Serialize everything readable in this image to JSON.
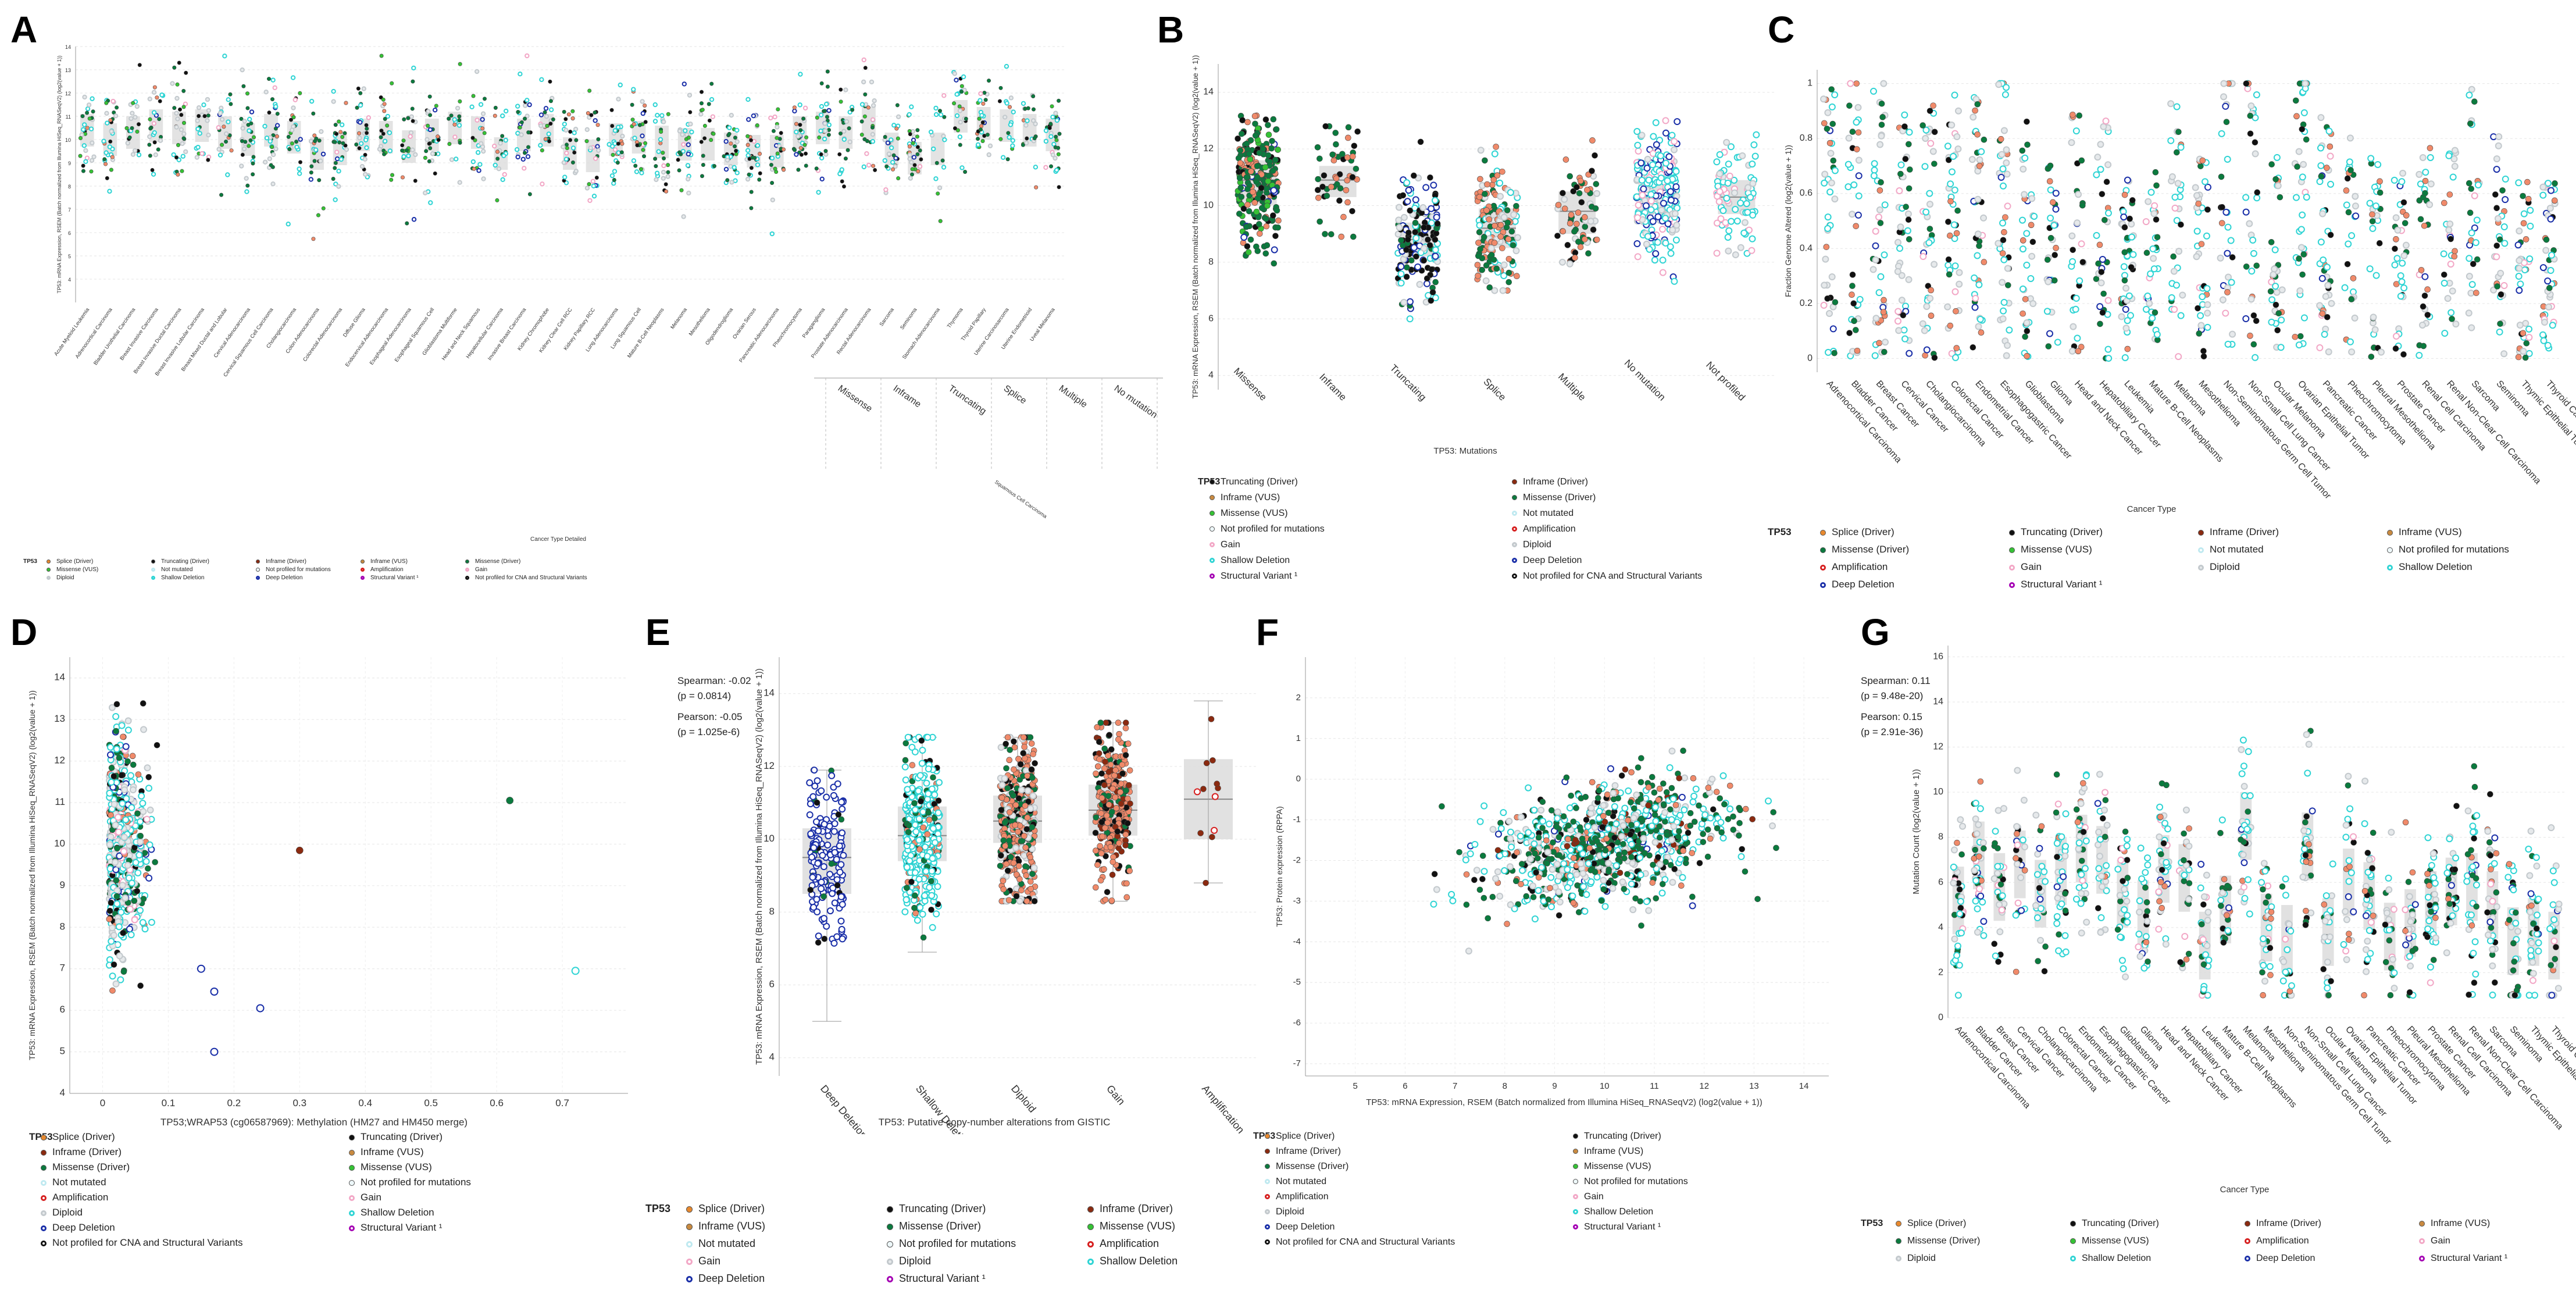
{
  "panels": {
    "A": "A",
    "B": "B",
    "C": "C",
    "D": "D",
    "E": "E",
    "F": "F",
    "G": "G"
  },
  "colors": {
    "splice": "#e8892e",
    "truncating": "#111111",
    "inframe": "#8b2a10",
    "missense_driver": "#0b7a3e",
    "missense_vus": "#35c235",
    "not_mutated": "#bfe9f0",
    "amplification": "#d61f1f",
    "gain": "#f2a7c6",
    "diploid": "#c3c9cd",
    "shallow": "#2fd4d4",
    "deep": "#1a2fa8",
    "structural": "#a400b3",
    "not_profiled_cna": "#111111",
    "inframe_vus": "#c98a40",
    "salmon": "#f08a6a",
    "box": "#dcdcdc"
  },
  "chart_data": [
    {
      "id": "A",
      "type": "scatter",
      "title": "",
      "xlabel": "Cancer Type Detailed",
      "ylabel": "TP53: mRNA Expression, RSEM (Batch normalized from Illumina HiSeq_RNASeqV2) (log2(value + 1))",
      "ylim": [
        3,
        14
      ],
      "yticks": [
        4,
        5,
        6,
        7,
        8,
        9,
        10,
        11,
        12,
        13,
        14
      ],
      "categories": [
        "Acute Myeloid Leukemia",
        "Adrenocortical Carcinoma",
        "Bladder Urothelial Carcinoma",
        "Breast Invasive Carcinoma",
        "Breast Invasive Ductal Carcinoma",
        "Breast Invasive Lobular Carcinoma",
        "Breast Mixed Ductal and Lobular",
        "Cervical Adenocarcinoma",
        "Cervical Squamous Cell Carcinoma",
        "Cholangiocarcinoma",
        "Colon Adenocarcinoma",
        "Colorectal Adenocarcinoma",
        "Diffuse Glioma",
        "Endocervical Adenocarcinoma",
        "Esophageal Adenocarcinoma",
        "Esophageal Squamous Cell",
        "Glioblastoma Multiforme",
        "Head and Neck Squamous",
        "Hepatocellular Carcinoma",
        "Invasive Breast Carcinoma",
        "Kidney Chromophobe",
        "Kidney Clear Cell RCC",
        "Kidney Papillary RCC",
        "Lung Adenocarcinoma",
        "Lung Squamous Cell",
        "Mature B-Cell Neoplasms",
        "Melanoma",
        "Mesothelioma",
        "Oligodendroglioma",
        "Ovarian Serous",
        "Pancreatic Adenocarcinoma",
        "Pheochromocytoma",
        "Paraganglioma",
        "Prostate Adenocarcinoma",
        "Rectal Adenocarcinoma",
        "Sarcoma",
        "Seminoma",
        "Stomach Adenocarcinoma",
        "Thymoma",
        "Thyroid Papillary",
        "Uterine Carcinosarcoma",
        "Uterine Endometrioid",
        "Uveal Melanoma"
      ],
      "medians": [
        10.4,
        10.0,
        10.3,
        10.6,
        10.5,
        10.6,
        10.3,
        10.0,
        10.4,
        10.1,
        9.4,
        9.6,
        10.2,
        10.1,
        9.7,
        10.2,
        10.5,
        10.3,
        9.4,
        10.2,
        10.4,
        9.4,
        9.3,
        10.0,
        10.1,
        9.9,
        9.8,
        9.8,
        9.6,
        9.5,
        9.5,
        10.3,
        10.5,
        10.3,
        10.7,
        9.6,
        9.2,
        9.6,
        11.0,
        10.7,
        10.6,
        10.4,
        10.2
      ],
      "x_panel_labels": [
        "Missense",
        "Inframe",
        "Truncating",
        "Splice",
        "Multiple",
        "No mutation",
        "Not profiled"
      ],
      "x_panel_extra": "Squamous Cell Carcinoma",
      "legend_title": "TP53",
      "legend": [
        "Splice (Driver)",
        "Truncating (Driver)",
        "Inframe (Driver)",
        "Inframe (VUS)",
        "Missense (Driver)",
        "Missense (VUS)",
        "Not mutated",
        "Not profiled for mutations",
        "Amplification",
        "Gain",
        "Diploid",
        "Shallow Deletion",
        "Deep Deletion",
        "Structural Variant ¹",
        "Not profiled for CNA and Structural Variants"
      ]
    },
    {
      "id": "B",
      "type": "scatter",
      "title": "",
      "xlabel": "TP53: Mutations",
      "ylabel": "TP53: mRNA Expression, RSEM (Batch normalized from Illumina HiSeq_RNASeqV2) (log2(value + 1))",
      "ylim": [
        3.5,
        15
      ],
      "yticks": [
        4,
        6,
        8,
        10,
        12,
        14
      ],
      "categories": [
        "Missense",
        "Inframe",
        "Truncating",
        "Splice",
        "Multiple",
        "No mutation",
        "Not profiled"
      ],
      "medians": [
        10.9,
        10.9,
        8.8,
        9.2,
        9.8,
        10.4,
        10.3
      ],
      "q1": [
        10.0,
        10.3,
        8.2,
        8.5,
        9.0,
        9.6,
        9.7
      ],
      "q3": [
        11.6,
        11.4,
        9.4,
        9.9,
        10.5,
        11.0,
        10.9
      ],
      "ranges": [
        [
          6.5,
          13.9
        ],
        [
          8.9,
          12.8
        ],
        [
          6.0,
          12.7
        ],
        [
          7.0,
          12.5
        ],
        [
          7.5,
          12.3
        ],
        [
          4.8,
          13.0
        ],
        [
          7.2,
          12.5
        ]
      ],
      "legend_title": "TP53",
      "legend": [
        "Truncating (Driver)",
        "Inframe (Driver)",
        "Inframe (VUS)",
        "Missense (Driver)",
        "Missense (VUS)",
        "Not mutated",
        "Not profiled for mutations",
        "Amplification",
        "Gain",
        "Diploid",
        "Shallow Deletion",
        "Deep Deletion",
        "Structural Variant ¹",
        "Not profiled for CNA and Structural Variants"
      ]
    },
    {
      "id": "C",
      "type": "scatter",
      "title": "",
      "xlabel": "Cancer Type",
      "ylabel": "Fraction Genome Altered (log2(value + 1))",
      "ylim": [
        -0.05,
        1.05
      ],
      "yticks": [
        0,
        0.2,
        0.4,
        0.6,
        0.8,
        1
      ],
      "categories": [
        "Adrenocortical Carcinoma",
        "Bladder Cancer",
        "Breast Cancer",
        "Cervical Cancer",
        "Cholangiocarcinoma",
        "Colorectal Cancer",
        "Endometrial Cancer",
        "Esophagogastric Cancer",
        "Glioblastoma",
        "Glioma",
        "Head and Neck Cancer",
        "Hepatobiliary Cancer",
        "Leukemia",
        "Mature B-Cell Neoplasms",
        "Melanoma",
        "Mesothelioma",
        "Non-Seminomatous Germ Cell Tumor",
        "Non-Small Cell Lung Cancer",
        "Ocular Melanoma",
        "Ovarian Epithelial Tumor",
        "Pancreatic Cancer",
        "Pheochromocytoma",
        "Pleural Mesothelioma",
        "Prostate Cancer",
        "Renal Cell Carcinoma",
        "Renal Non-Clear Cell Carcinoma",
        "Sarcoma",
        "Seminoma",
        "Thymic Epithelial Tumor",
        "Thyroid Cancer"
      ],
      "medians": [
        0.4,
        0.45,
        0.42,
        0.3,
        0.32,
        0.38,
        0.35,
        0.48,
        0.28,
        0.12,
        0.36,
        0.3,
        0.05,
        0.1,
        0.35,
        0.15,
        0.5,
        0.5,
        0.15,
        0.52,
        0.28,
        0.22,
        0.14,
        0.12,
        0.2,
        0.18,
        0.38,
        0.25,
        0.05,
        0.04
      ],
      "legend_title": "TP53",
      "legend": [
        "Splice (Driver)",
        "Truncating (Driver)",
        "Inframe (Driver)",
        "Inframe (VUS)",
        "Missense (Driver)",
        "Missense (VUS)",
        "Not mutated",
        "Not profiled for mutations",
        "Amplification",
        "Gain",
        "Diploid",
        "Shallow Deletion",
        "Deep Deletion",
        "Structural Variant ¹"
      ]
    },
    {
      "id": "D",
      "type": "scatter",
      "title": "",
      "xlabel": "TP53;WRAP53 (cg06587969): Methylation (HM27 and HM450 merge)",
      "ylabel": "TP53: mRNA Expression, RSEM (Batch normalized from Illumina HiSeq_RNASeqV2) (log2(value + 1))",
      "xlim": [
        -0.05,
        0.8
      ],
      "ylim": [
        4,
        14.5
      ],
      "xticks": [
        0,
        0.1,
        0.2,
        0.3,
        0.4,
        0.5,
        0.6,
        0.7
      ],
      "yticks": [
        4,
        5,
        6,
        7,
        8,
        9,
        10,
        11,
        12,
        13,
        14
      ],
      "outliers": [
        {
          "x": 0.62,
          "y": 11.05
        },
        {
          "x": 0.72,
          "y": 6.95
        },
        {
          "x": 0.3,
          "y": 9.85
        },
        {
          "x": 0.24,
          "y": 6.05
        },
        {
          "x": 0.17,
          "y": 5.0
        },
        {
          "x": 0.15,
          "y": 7.0
        },
        {
          "x": 0.17,
          "y": 6.45
        }
      ],
      "legend_title": "TP53",
      "legend": [
        "Splice (Driver)",
        "Truncating (Driver)",
        "Inframe (Driver)",
        "Inframe (VUS)",
        "Missense (Driver)",
        "Missense (VUS)",
        "Not mutated",
        "Not profiled for mutations",
        "Amplification",
        "Gain",
        "Diploid",
        "Shallow Deletion",
        "Deep Deletion",
        "Structural Variant ¹",
        "Not profiled for CNA and Structural Variants"
      ]
    },
    {
      "id": "E",
      "type": "scatter",
      "title": "",
      "xlabel": "TP53: Putative copy-number alterations from GISTIC",
      "ylabel": "TP53: mRNA Expression, RSEM (Batch normalized from Illumina HiSeq_RNASeqV2) (log2(value + 1))",
      "ylim": [
        3.5,
        15
      ],
      "yticks": [
        4,
        6,
        8,
        10,
        12,
        14
      ],
      "categories": [
        "Deep Deletion",
        "Shallow Deletion",
        "Diploid",
        "Gain",
        "Amplification"
      ],
      "medians": [
        9.5,
        10.1,
        10.5,
        10.8,
        11.1
      ],
      "q1": [
        8.5,
        9.4,
        9.9,
        10.1,
        10.0
      ],
      "q3": [
        10.3,
        10.9,
        11.2,
        11.5,
        12.2
      ],
      "whiskers": [
        [
          5.0,
          11.9
        ],
        [
          6.9,
          12.8
        ],
        [
          8.3,
          12.8
        ],
        [
          8.3,
          13.2
        ],
        [
          8.8,
          13.8
        ]
      ],
      "legend_title": "TP53",
      "legend": [
        "Splice (Driver)",
        "Truncating (Driver)",
        "Inframe (Driver)",
        "Inframe (VUS)",
        "Missense (Driver)",
        "Missense (VUS)",
        "Not mutated",
        "Not profiled for mutations",
        "Amplification",
        "Gain",
        "Diploid",
        "Shallow Deletion",
        "Deep Deletion",
        "Structural Variant ¹"
      ]
    },
    {
      "id": "F",
      "type": "scatter",
      "title": "",
      "xlabel": "TP53: mRNA Expression, RSEM (Batch normalized from Illumina HiSeq_RNASeqV2) (log2(value + 1))",
      "ylabel": "TP53: Protein expression (RPPA)",
      "xlim": [
        4,
        14.5
      ],
      "ylim": [
        -7.3,
        3
      ],
      "xticks": [
        5,
        6,
        7,
        8,
        9,
        10,
        11,
        12,
        13,
        14
      ],
      "yticks": [
        -7,
        -6,
        -5,
        -4,
        -3,
        -2,
        -1,
        0,
        1,
        2
      ],
      "legend_title": "TP53",
      "legend": [
        "Splice (Driver)",
        "Truncating (Driver)",
        "Inframe (Driver)",
        "Inframe (VUS)",
        "Missense (Driver)",
        "Missense (VUS)",
        "Not mutated",
        "Not profiled for mutations",
        "Amplification",
        "Gain",
        "Diploid",
        "Shallow Deletion",
        "Deep Deletion",
        "Structural Variant ¹",
        "Not profiled for CNA and Structural Variants"
      ]
    },
    {
      "id": "G",
      "type": "scatter",
      "title": "",
      "xlabel": "Cancer Type",
      "ylabel": "Mutation Count (log2(value + 1))",
      "ylim": [
        0,
        16.5
      ],
      "yticks": [
        0,
        2,
        4,
        6,
        8,
        10,
        12,
        14,
        16
      ],
      "categories": [
        "Adrenocortical Carcinoma",
        "Bladder Cancer",
        "Breast Cancer",
        "Cervical Cancer",
        "Cholangiocarcinoma",
        "Colorectal Cancer",
        "Endometrial Cancer",
        "Esophagogastric Cancer",
        "Glioblastoma",
        "Glioma",
        "Head and Neck Cancer",
        "Hepatobiliary Cancer",
        "Leukemia",
        "Mature B-Cell Neoplasms",
        "Melanoma",
        "Mesothelioma",
        "Non-Seminomatous Germ Cell Tumor",
        "Non-Small Cell Lung Cancer",
        "Ocular Melanoma",
        "Ovarian Epithelial Tumor",
        "Pancreatic Cancer",
        "Pheochromocytoma",
        "Pleural Mesothelioma",
        "Prostate Cancer",
        "Renal Cell Carcinoma",
        "Renal Non-Clear Cell Carcinoma",
        "Sarcoma",
        "Seminoma",
        "Thymic Epithelial Tumor",
        "Thyroid Cancer"
      ],
      "medians": [
        5.2,
        7.2,
        5.8,
        6.8,
        5.5,
        6.5,
        7.5,
        7.0,
        5.5,
        4.6,
        6.6,
        6.2,
        3.2,
        4.8,
        8.5,
        4.0,
        3.5,
        7.6,
        3.8,
        6.0,
        5.4,
        3.6,
        4.2,
        5.0,
        5.6,
        5.8,
        5.0,
        3.4,
        3.8,
        3.2
      ],
      "legend_title": "TP53",
      "legend": [
        "Splice (Driver)",
        "Truncating (Driver)",
        "Inframe (Driver)",
        "Inframe (VUS)",
        "Missense (Driver)",
        "Missense (VUS)",
        "Amplification",
        "Gain",
        "Diploid",
        "Shallow Deletion",
        "Deep Deletion",
        "Structural Variant ¹"
      ]
    }
  ],
  "stats": {
    "D": {
      "spearman": "Spearman: -0.02",
      "spearman_p": "(p = 0.0814)",
      "pearson": "Pearson: -0.05",
      "pearson_p": "(p = 1.025e-6)"
    },
    "G": {
      "spearman": "Spearman: 0.11",
      "spearman_p": "(p = 9.48e-20)",
      "pearson": "Pearson: 0.15",
      "pearson_p": "(p = 2.91e-36)"
    }
  },
  "legend_keys": {
    "Splice (Driver)": "splice",
    "Truncating (Driver)": "truncating",
    "Inframe (Driver)": "inframe",
    "Inframe (VUS)": "inframe_vus",
    "Missense (Driver)": "missense_driver",
    "Missense (VUS)": "missense_vus",
    "Not mutated": "not_mutated",
    "Not profiled for mutations": "not_profiled",
    "Amplification": "amplification",
    "Gain": "gain",
    "Diploid": "diploid",
    "Shallow Deletion": "shallow",
    "Deep Deletion": "deep",
    "Structural Variant ¹": "structural",
    "Not profiled for CNA and Structural Variants": "not_profiled_cna"
  }
}
